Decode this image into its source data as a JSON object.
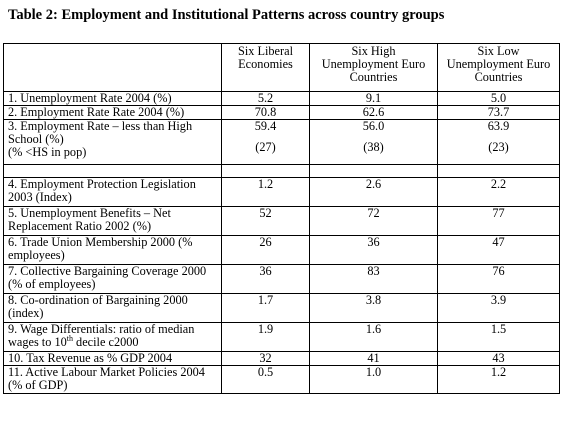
{
  "title": "Table 2: Employment and Institutional Patterns across country groups",
  "columns": [
    "Six Liberal Economies",
    "Six High Unemployment Euro Countries",
    "Six Low Unemployment Euro Countries"
  ],
  "rows": [
    {
      "label": "1. Unemployment Rate 2004  (%)",
      "values": [
        "5.2",
        "9.1",
        "5.0"
      ]
    },
    {
      "label": "2. Employment Rate Rate 2004  (%)",
      "values": [
        "70.8",
        "62.6",
        "73.7"
      ]
    },
    {
      "label": "3. Employment Rate – less than High School  (%)",
      "values": [
        "59.4",
        "56.0",
        "63.9"
      ],
      "sublabel": "(% <HS in pop)",
      "subvalues": [
        "(27)",
        "(38)",
        "(23)"
      ]
    },
    {
      "label": "4. Employment Protection Legislation  2003  (Index)",
      "values": [
        "1.2",
        "2.6",
        "2.2"
      ]
    },
    {
      "label": "5. Unemployment Benefits – Net Replacement Ratio 2002  (%)",
      "values": [
        "52",
        "72",
        "77"
      ]
    },
    {
      "label": "6. Trade Union Membership  2000 (% employees)",
      "values": [
        "26",
        "36",
        "47"
      ]
    },
    {
      "label": "7. Collective Bargaining Coverage 2000 (% of employees)",
      "values": [
        "36",
        "83",
        "76"
      ]
    },
    {
      "label": "8. Co-ordination of Bargaining 2000  (index)",
      "values": [
        "1.7",
        "3.8",
        "3.9"
      ]
    },
    {
      "label_a": "9. Wage Differentials: ratio of median wages to  10",
      "label_sup": "th",
      "label_b": " decile  c2000",
      "values": [
        "1.9",
        "1.6",
        "1.5"
      ]
    },
    {
      "label": "10. Tax Revenue as % GDP 2004",
      "values": [
        "32",
        "41",
        "43"
      ]
    },
    {
      "label": "11. Active Labour Market Policies 2004 (% of GDP)",
      "values": [
        "0.5",
        "1.0",
        "1.2"
      ]
    }
  ]
}
